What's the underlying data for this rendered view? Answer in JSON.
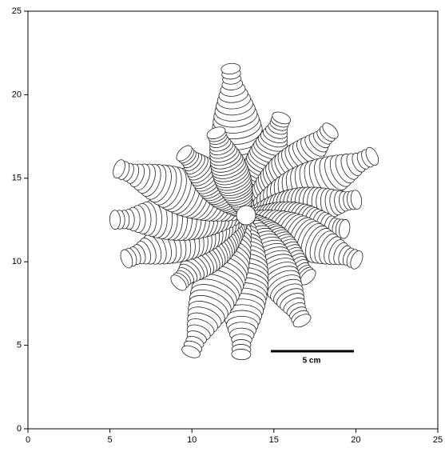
{
  "chart_data": {
    "type": "contour",
    "xlim": [
      0,
      25
    ],
    "ylim": [
      0,
      25
    ],
    "xticks": [
      0,
      5,
      10,
      15,
      20,
      25
    ],
    "yticks": [
      0,
      5,
      10,
      15,
      20,
      25
    ],
    "annotations": [
      {
        "text": "5 cm"
      }
    ]
  }
}
